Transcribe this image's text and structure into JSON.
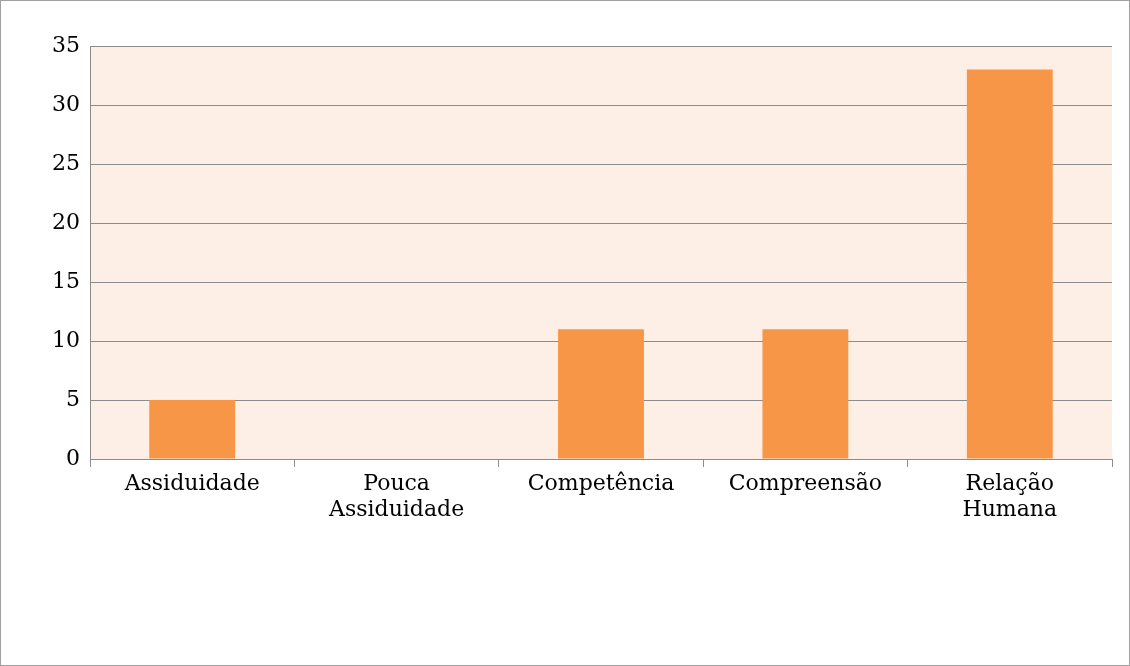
{
  "chart_data": {
    "type": "bar",
    "categories": [
      "Assiduidade",
      "Pouca Assiduidade",
      "Competência",
      "Compreensão",
      "Relação Humana"
    ],
    "values": [
      5,
      0,
      11,
      11,
      33
    ],
    "color": "#f79646",
    "ylim": [
      0,
      35
    ],
    "yticks": [
      0,
      5,
      10,
      15,
      20,
      25,
      30,
      35
    ],
    "grid": "y",
    "legend": false
  }
}
